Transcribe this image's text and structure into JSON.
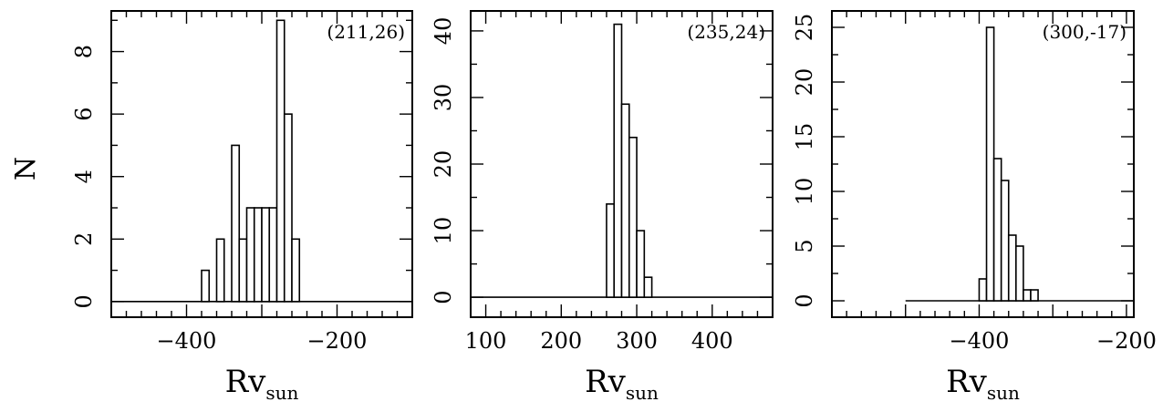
{
  "shared_ylabel": "N",
  "chart_data": [
    {
      "type": "bar",
      "annotation": "(211,26)",
      "xlabel_main": "Rv",
      "xlabel_sub": "sun",
      "xlim": [
        -500,
        -100
      ],
      "ylim": [
        -0.5,
        9.3
      ],
      "xticks": [
        -400,
        -200
      ],
      "yticks": [
        0,
        2,
        4,
        6,
        8
      ],
      "baseline_range": [
        -500,
        -100
      ],
      "bin_width": 10,
      "bins": [
        {
          "x": -380,
          "value": 1
        },
        {
          "x": -370,
          "value": 0
        },
        {
          "x": -360,
          "value": 2
        },
        {
          "x": -350,
          "value": 0
        },
        {
          "x": -340,
          "value": 5
        },
        {
          "x": -330,
          "value": 2
        },
        {
          "x": -320,
          "value": 3
        },
        {
          "x": -310,
          "value": 3
        },
        {
          "x": -300,
          "value": 3
        },
        {
          "x": -290,
          "value": 3
        },
        {
          "x": -280,
          "value": 9
        },
        {
          "x": -270,
          "value": 6
        },
        {
          "x": -260,
          "value": 2
        }
      ]
    },
    {
      "type": "bar",
      "annotation": "(235,24)",
      "xlabel_main": "Rv",
      "xlabel_sub": "sun",
      "xlim": [
        80,
        480
      ],
      "ylim": [
        -3,
        43
      ],
      "xticks": [
        100,
        200,
        300,
        400
      ],
      "yticks": [
        0,
        10,
        20,
        30,
        40
      ],
      "baseline_range": [
        80,
        480
      ],
      "bin_width": 10,
      "bins": [
        {
          "x": 260,
          "value": 14
        },
        {
          "x": 270,
          "value": 41
        },
        {
          "x": 280,
          "value": 29
        },
        {
          "x": 290,
          "value": 24
        },
        {
          "x": 300,
          "value": 10
        },
        {
          "x": 310,
          "value": 3
        }
      ]
    },
    {
      "type": "bar",
      "annotation": "(300,-17)",
      "xlabel_main": "Rv",
      "xlabel_sub": "sun",
      "xlim": [
        -600,
        -190
      ],
      "ylim": [
        -1.5,
        26.5
      ],
      "xticks": [
        -400,
        -200
      ],
      "yticks": [
        0,
        5,
        10,
        15,
        20,
        25
      ],
      "baseline_range": [
        -500,
        -190
      ],
      "bin_width": 10,
      "bins": [
        {
          "x": -400,
          "value": 2
        },
        {
          "x": -390,
          "value": 25
        },
        {
          "x": -380,
          "value": 13
        },
        {
          "x": -370,
          "value": 11
        },
        {
          "x": -360,
          "value": 6
        },
        {
          "x": -350,
          "value": 5
        },
        {
          "x": -340,
          "value": 1
        },
        {
          "x": -330,
          "value": 1
        }
      ]
    }
  ]
}
